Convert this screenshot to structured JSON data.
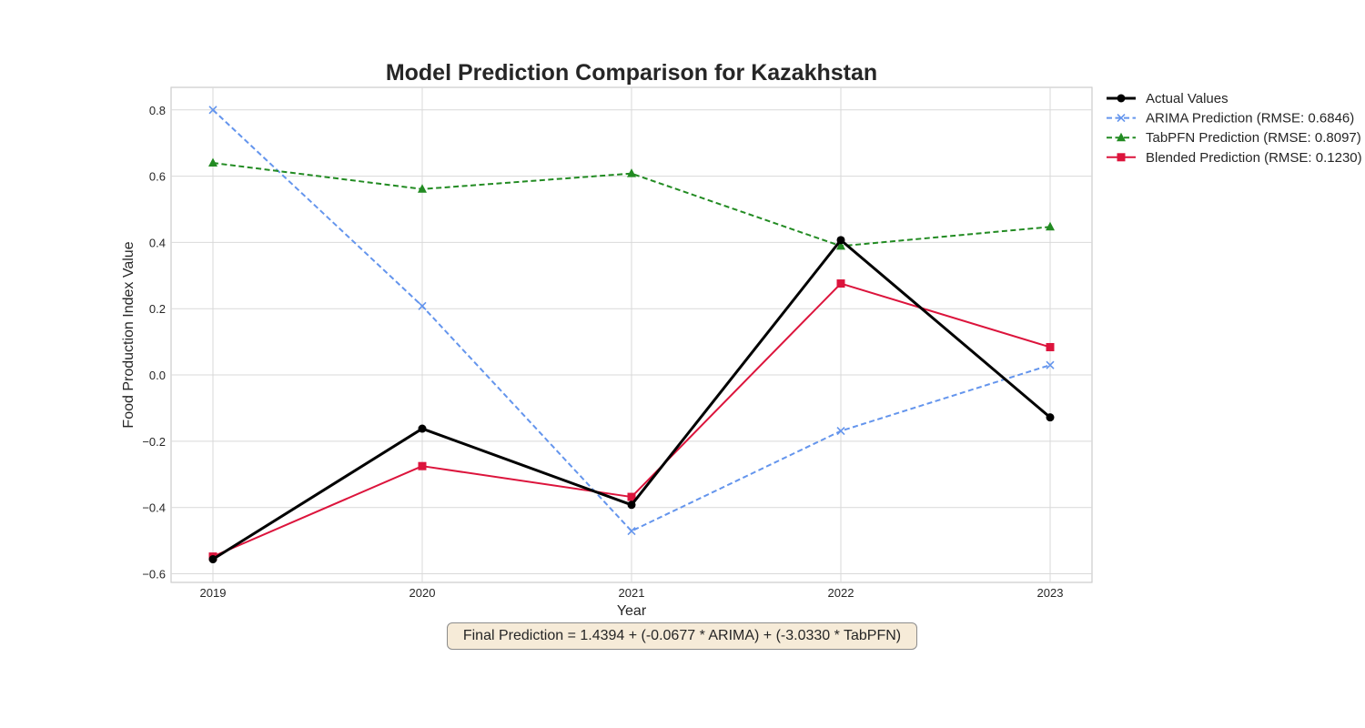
{
  "chart_data": {
    "type": "line",
    "title": "Model Prediction Comparison for Kazakhstan",
    "xlabel": "Year",
    "ylabel": "Food Production Index Value",
    "x": [
      2019,
      2020,
      2021,
      2022,
      2023
    ],
    "xlim": [
      2018.8,
      2023.2
    ],
    "ylim": [
      -0.626,
      0.868
    ],
    "yticks": [
      "0.8",
      "0.6",
      "0.4",
      "0.2",
      "0.0",
      "−0.2",
      "−0.4",
      "−0.6"
    ],
    "ytick_values": [
      0.8,
      0.6,
      0.4,
      0.2,
      0.0,
      -0.2,
      -0.4,
      -0.6
    ],
    "xticks": [
      "2019",
      "2020",
      "2021",
      "2022",
      "2023"
    ],
    "grid": true,
    "legend_position": "outside-top-right",
    "series": [
      {
        "name": "Actual Values",
        "color": "#000000",
        "dash": "solid",
        "marker": "circle",
        "values": [
          -0.556,
          -0.162,
          -0.392,
          0.407,
          -0.128
        ]
      },
      {
        "name": "ARIMA Prediction (RMSE: 0.6846)",
        "color": "#6495ed",
        "dash": "dashed",
        "marker": "x",
        "values": [
          0.8,
          0.208,
          -0.471,
          -0.169,
          0.03
        ]
      },
      {
        "name": "TabPFN Prediction (RMSE: 0.8097)",
        "color": "#228b22",
        "dash": "dashed",
        "marker": "triangle",
        "values": [
          0.64,
          0.561,
          0.608,
          0.389,
          0.447
        ]
      },
      {
        "name": "Blended Prediction (RMSE: 0.1230)",
        "color": "#dc143c",
        "dash": "solid",
        "marker": "square",
        "values": [
          -0.548,
          -0.275,
          -0.368,
          0.276,
          0.084
        ]
      }
    ],
    "annotation": "Final Prediction = 1.4394 + (-0.0677 * ARIMA) + (-3.0330 * TabPFN)"
  }
}
